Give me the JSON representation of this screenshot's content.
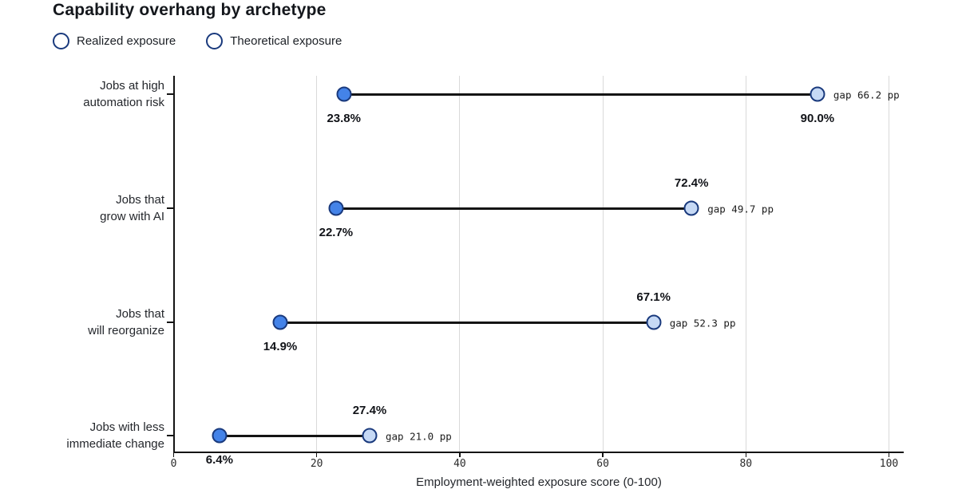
{
  "chart_data": {
    "type": "dumbbell",
    "title": "Capability overhang by archetype",
    "xlabel": "Employment-weighted exposure score (0-100)",
    "xlim": [
      0,
      100
    ],
    "xticks": [
      0,
      20,
      40,
      60,
      80,
      100
    ],
    "grid": "vertical",
    "legend": [
      {
        "label": "Realized exposure",
        "color": "#4483e8"
      },
      {
        "label": "Theoretical exposure",
        "color": "#c6d9f5"
      }
    ],
    "colors": {
      "realized_fill": "#4483e8",
      "theoretical_fill": "#c6d9f5",
      "marker_border": "#1a3a7d",
      "connector": "#141414",
      "gridline": "#d9d9d9"
    },
    "rows": [
      {
        "category_lines": [
          "Jobs at high",
          "automation risk"
        ],
        "realized": 23.8,
        "theoretical": 90.0,
        "realized_label": "23.8%",
        "theoretical_label": "90.0%",
        "theoretical_label_position": "below",
        "gap_label": "gap 66.2 pp"
      },
      {
        "category_lines": [
          "Jobs that",
          "grow with AI"
        ],
        "realized": 22.7,
        "theoretical": 72.4,
        "realized_label": "22.7%",
        "theoretical_label": "72.4%",
        "theoretical_label_position": "above",
        "gap_label": "gap 49.7 pp"
      },
      {
        "category_lines": [
          "Jobs that",
          "will reorganize"
        ],
        "realized": 14.9,
        "theoretical": 67.1,
        "realized_label": "14.9%",
        "theoretical_label": "67.1%",
        "theoretical_label_position": "above",
        "gap_label": "gap 52.3 pp"
      },
      {
        "category_lines": [
          "Jobs with less",
          "immediate change"
        ],
        "realized": 6.4,
        "theoretical": 27.4,
        "realized_label": "6.4%",
        "theoretical_label": "27.4%",
        "theoretical_label_position": "above",
        "gap_label": "gap 21.0 pp"
      }
    ]
  }
}
